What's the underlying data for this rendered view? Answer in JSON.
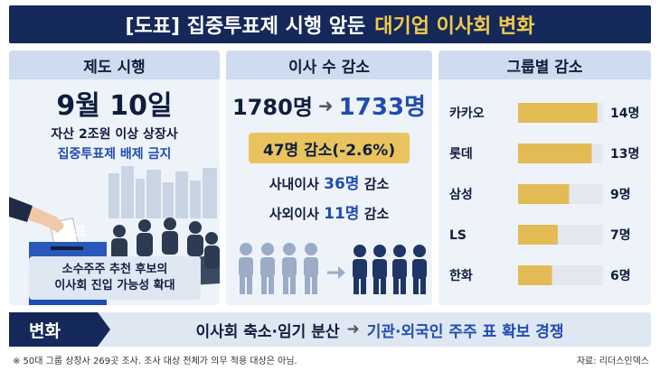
{
  "title": {
    "prefix": "[도표] 집중투표제 시행 앞둔",
    "highlight": "대기업 이사회 변화"
  },
  "panel_system": {
    "heading": "제도 시행",
    "date": "9월 10일",
    "line1": "자산 2조원 이상 상장사",
    "line2": "집중투표제 배제 금지",
    "ballot_label": "투표",
    "note_line1": "소수주주 추천 후보의",
    "note_line2": "이사회 진입 가능성 확대"
  },
  "panel_directors": {
    "heading": "이사 수 감소",
    "count_from": "1780명",
    "count_to": "1733명",
    "decrease": "47명 감소(-2.6%)",
    "inside_prefix": "사내이사",
    "inside_num": "36명",
    "inside_suffix": "감소",
    "outside_prefix": "사외이사",
    "outside_num": "11명",
    "outside_suffix": "감소"
  },
  "colors": {
    "navy": "#14295a",
    "gold": "#e9c45e",
    "blue": "#1f4db0",
    "panel": "#eef3fa"
  },
  "chart_data": {
    "type": "bar",
    "title": "그룹별 감소",
    "categories": [
      "카카오",
      "롯데",
      "삼성",
      "LS",
      "한화"
    ],
    "values": [
      14,
      13,
      9,
      7,
      6
    ],
    "value_labels": [
      "14명",
      "13명",
      "9명",
      "7명",
      "6명"
    ],
    "xlim": [
      0,
      15
    ],
    "orientation": "horizontal",
    "grid": false
  },
  "bottom": {
    "tag": "변화",
    "msg_left": "이사회 축소·임기 분산",
    "msg_right": "기관·외국인 주주 표 확보 경쟁"
  },
  "footnote": "※ 50대 그룹 상장사 269곳 조사. 조사 대상 전체가 의무 적용 대상은 아님.",
  "source": "자료: 리더스인덱스"
}
